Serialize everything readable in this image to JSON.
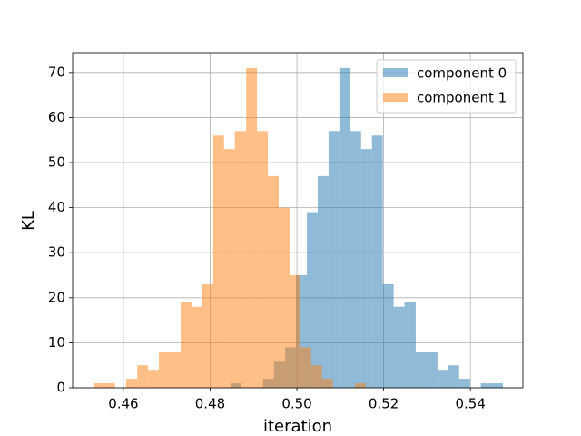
{
  "chart_data": {
    "type": "histogram",
    "x_label": "iteration",
    "y_label": "KL",
    "series": [
      {
        "name": "component 0",
        "color": "#1f77b4",
        "alpha": 0.5,
        "bins": [
          0.4847,
          0.4872,
          0.4897,
          0.4922,
          0.4947,
          0.4973,
          0.4998,
          0.5023,
          0.5048,
          0.5073,
          0.5098,
          0.5123,
          0.5148,
          0.5173,
          0.5198,
          0.5223,
          0.5248,
          0.5274,
          0.5299,
          0.5324,
          0.5349,
          0.5374,
          0.5399,
          0.5424,
          0.5449,
          0.5475
        ],
        "values": [
          1,
          0,
          0,
          2,
          6,
          9,
          25,
          39,
          47,
          57,
          71,
          57,
          53,
          56,
          23,
          18,
          19,
          8,
          8,
          4,
          5,
          2,
          0,
          1,
          1
        ]
      },
      {
        "name": "component 1",
        "color": "#ff7f0e",
        "alpha": 0.5,
        "bins": [
          0.4531,
          0.4556,
          0.4581,
          0.4606,
          0.4632,
          0.4657,
          0.4682,
          0.4707,
          0.4732,
          0.4757,
          0.4782,
          0.4807,
          0.4832,
          0.4857,
          0.4883,
          0.4908,
          0.4933,
          0.4958,
          0.4983,
          0.5008,
          0.5033,
          0.5058,
          0.5083,
          0.5108,
          0.5134,
          0.5159
        ],
        "values": [
          1,
          1,
          0,
          2,
          5,
          4,
          8,
          8,
          19,
          18,
          23,
          56,
          53,
          57,
          71,
          57,
          47,
          40,
          25,
          9,
          5,
          2,
          0,
          0,
          1
        ]
      }
    ],
    "xlim": [
      0.4483,
      0.5521
    ],
    "ylim": [
      0,
      74.4
    ],
    "xticks": [
      0.46,
      0.48,
      {
        "value": 0.5,
        "label": "0.50"
      },
      0.52,
      0.54
    ],
    "yticks": [
      0,
      10,
      20,
      30,
      40,
      50,
      60,
      70
    ],
    "grid": true,
    "legend": "upper right"
  }
}
